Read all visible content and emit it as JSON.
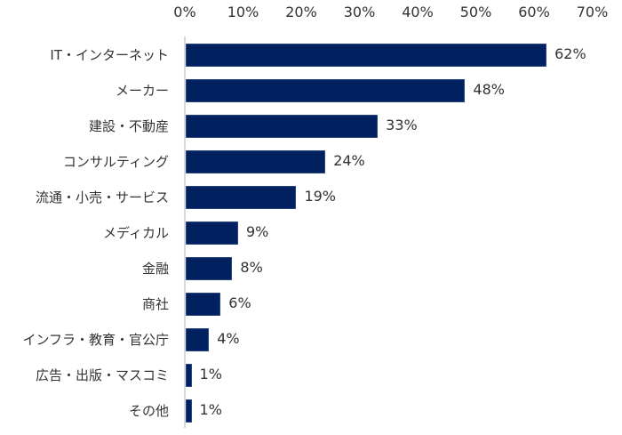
{
  "chart_data": {
    "type": "bar",
    "orientation": "horizontal",
    "title": "",
    "xlabel": "",
    "ylabel": "",
    "xlim": [
      0,
      70
    ],
    "x_ticks": [
      "0%",
      "10%",
      "20%",
      "30%",
      "40%",
      "50%",
      "60%",
      "70%"
    ],
    "x_axis_position": "top",
    "grid": false,
    "legend": null,
    "bar_color": "#002060",
    "categories": [
      "IT・インターネット",
      "メーカー",
      "建設・不動産",
      "コンサルティング",
      "流通・小売・サービス",
      "メディカル",
      "金融",
      "商社",
      "インフラ・教育・官公庁",
      "広告・出版・マスコミ",
      "その他"
    ],
    "values": [
      62,
      48,
      33,
      24,
      19,
      9,
      8,
      6,
      4,
      1,
      1
    ],
    "value_labels": [
      "62%",
      "48%",
      "33%",
      "24%",
      "19%",
      "9%",
      "8%",
      "6%",
      "4%",
      "1%",
      "1%"
    ]
  }
}
